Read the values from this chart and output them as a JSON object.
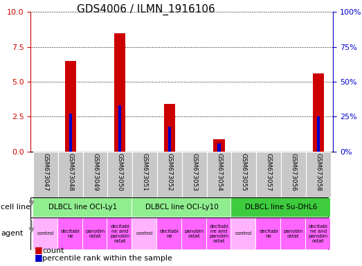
{
  "title": "GDS4006 / ILMN_1916106",
  "samples": [
    "GSM673047",
    "GSM673048",
    "GSM673049",
    "GSM673050",
    "GSM673051",
    "GSM673052",
    "GSM673053",
    "GSM673054",
    "GSM673055",
    "GSM673057",
    "GSM673056",
    "GSM673058"
  ],
  "count_values": [
    0,
    6.5,
    0,
    8.5,
    0,
    3.4,
    0,
    0.9,
    0,
    0,
    0,
    5.6
  ],
  "percentile_values": [
    0,
    27,
    0,
    33,
    0,
    18,
    0,
    6,
    0,
    0,
    0,
    25
  ],
  "cell_lines": [
    {
      "label": "DLBCL line OCI-Ly1",
      "start": 0,
      "end": 3,
      "color": "#90EE90"
    },
    {
      "label": "DLBCL line OCI-Ly10",
      "start": 4,
      "end": 7,
      "color": "#90EE90"
    },
    {
      "label": "DLBCL line Su-DHL6",
      "start": 8,
      "end": 11,
      "color": "#3ECC3E"
    }
  ],
  "agents": [
    "control",
    "decitabi\nne",
    "panobin\nostat",
    "decitabi\nne and\npanobin\nostat",
    "control",
    "decitabi\nne",
    "panobin\nostat",
    "decitabi\nne and\npanobin\nostat",
    "control",
    "decitabi\nne",
    "panobin\nostat",
    "decitabi\nne and\npanobin\nostat"
  ],
  "agent_colors": [
    "#FFB3FF",
    "#FF66FF",
    "#FF66FF",
    "#FF66FF",
    "#FFB3FF",
    "#FF66FF",
    "#FF66FF",
    "#FF66FF",
    "#FFB3FF",
    "#FF66FF",
    "#FF66FF",
    "#FF66FF"
  ],
  "bar_color": "#CC0000",
  "percentile_color": "#0000CC",
  "ylim_left": [
    0,
    10
  ],
  "ylim_right": [
    0,
    100
  ],
  "yticks_left": [
    0,
    2.5,
    5.0,
    7.5,
    10
  ],
  "yticks_right": [
    0,
    25,
    50,
    75,
    100
  ],
  "left_axis_color": "#CC0000",
  "right_axis_color": "#0000CC",
  "bar_width": 0.45,
  "pct_bar_width": 0.12,
  "sample_bg_color": "#C8C8C8",
  "legend_count_color": "#CC0000",
  "legend_pct_color": "#0000CC",
  "title_fontsize": 11,
  "tick_fontsize": 8,
  "label_fontsize": 7
}
